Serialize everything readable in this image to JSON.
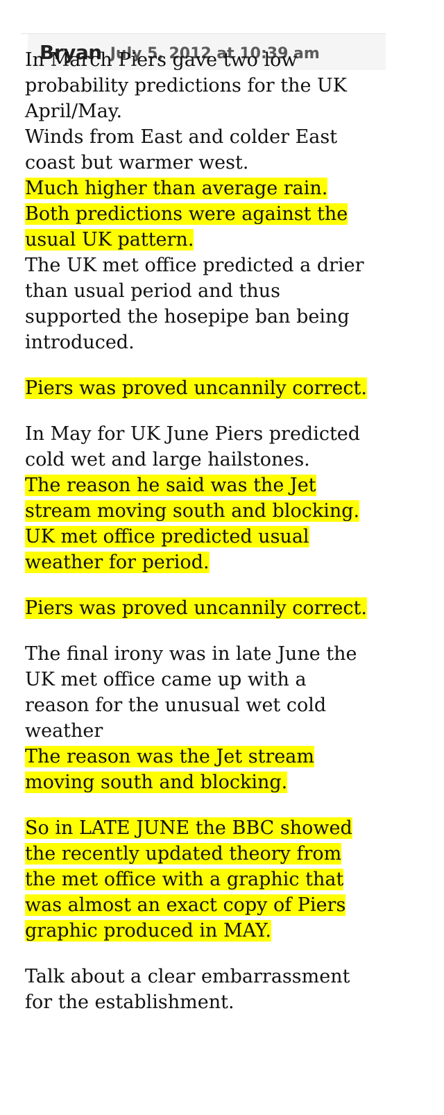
{
  "comment": {
    "author": "Bryan",
    "date": "July 5, 2012 at 10:39 am",
    "paragraphs": [
      {
        "lines": [
          {
            "text": "In March Piers gave two low probability predictions for the UK April/May.",
            "highlight": false
          },
          {
            "text": "Winds from East and colder East coast but warmer west.",
            "highlight": false
          },
          {
            "text": "Much higher than average rain.",
            "highlight": true
          },
          {
            "text": "Both predictions were against the usual UK pattern.",
            "highlight": true
          },
          {
            "text": "The UK met office predicted a drier than usual period and thus supported the hosepipe ban being introduced.",
            "highlight": false
          }
        ]
      },
      {
        "lines": [
          {
            "text": "Piers was proved uncannily correct.",
            "highlight": true
          }
        ]
      },
      {
        "lines": [
          {
            "text": "In May for UK June Piers predicted cold wet and large hailstones.",
            "highlight": false
          },
          {
            "text": "The reason he said was the Jet stream moving south and blocking.",
            "highlight": true
          },
          {
            "text": "UK met office predicted usual weather for period.",
            "highlight": true
          }
        ]
      },
      {
        "lines": [
          {
            "text": "Piers was proved uncannily correct.",
            "highlight": true
          }
        ]
      },
      {
        "lines": [
          {
            "text": "The final irony was in late June the UK met office came up with a reason for the unusual wet cold weather",
            "highlight": false
          },
          {
            "text": "The reason was the Jet stream moving south and blocking.",
            "highlight": true
          }
        ]
      },
      {
        "lines": [
          {
            "text": "So in LATE JUNE the BBC showed the recently updated theory from the met office with a graphic that was almost an exact copy of Piers graphic produced in MAY.",
            "highlight": true
          }
        ]
      },
      {
        "lines": [
          {
            "text": "Talk about a clear embarrassment for the establishment.",
            "highlight": false
          }
        ]
      }
    ],
    "colors": {
      "highlight": "#ffff00",
      "header_background": "#f5f5f5",
      "date_text": "#5a5a5a"
    }
  }
}
